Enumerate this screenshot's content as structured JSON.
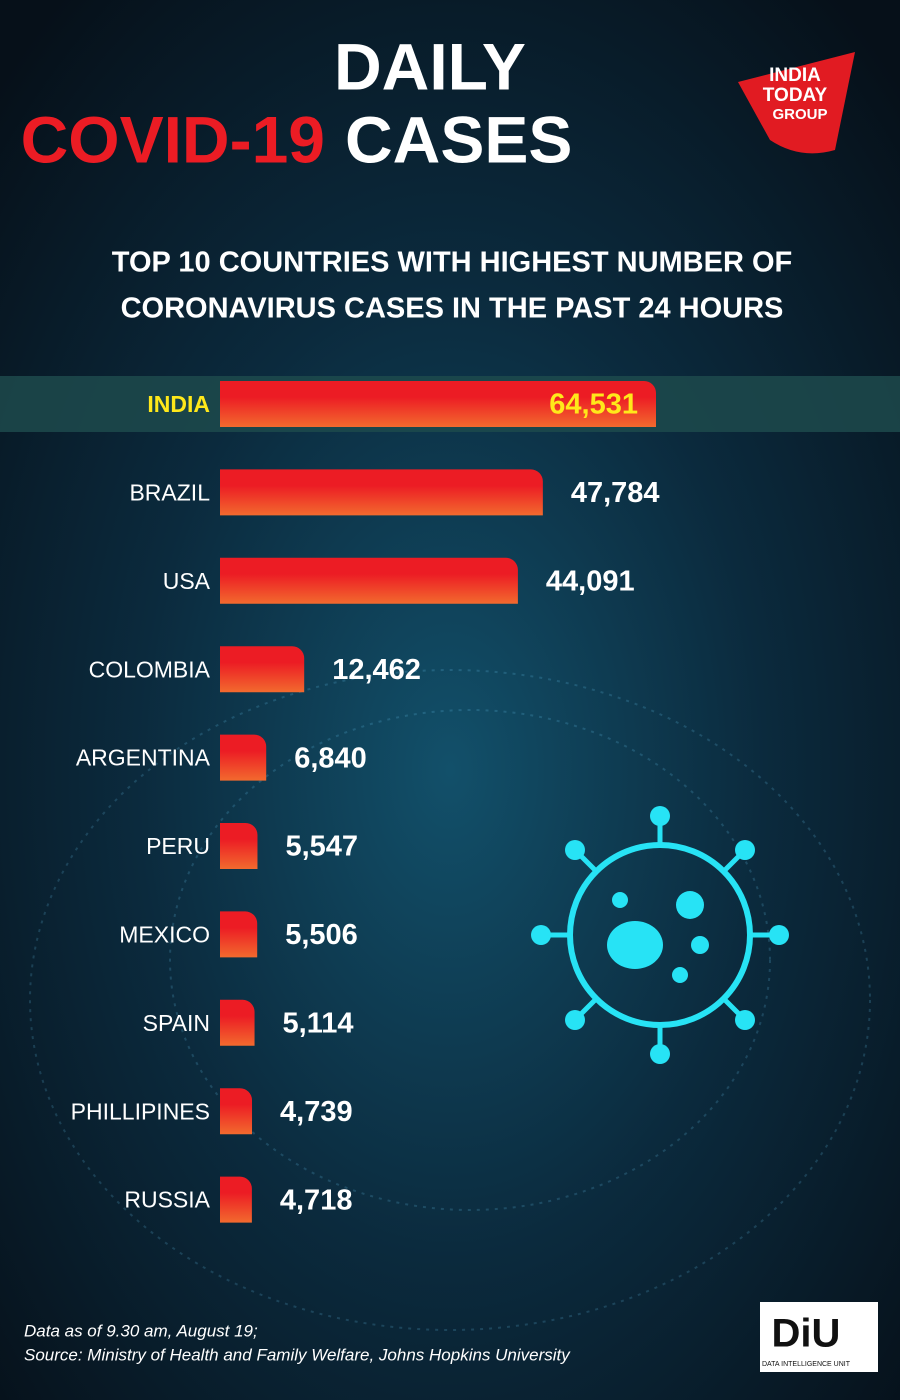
{
  "chart_data": {
    "type": "bar",
    "orientation": "horizontal",
    "title": [
      "DAILY",
      "COVID-19",
      "CASES"
    ],
    "subtitle": [
      "TOP 10 COUNTRIES WITH HIGHEST NUMBER OF",
      "CORONAVIRUS CASES IN THE PAST 24 HOURS"
    ],
    "categories": [
      "INDIA",
      "BRAZIL",
      "USA",
      "COLOMBIA",
      "ARGENTINA",
      "PERU",
      "MEXICO",
      "SPAIN",
      "PHILLIPINES",
      "RUSSIA"
    ],
    "values": [
      64531,
      47784,
      44091,
      12462,
      6840,
      5547,
      5506,
      5114,
      4739,
      4718
    ],
    "value_labels": [
      "64,531",
      "47,784",
      "44,091",
      "12,462",
      "6,840",
      "5,547",
      "5,506",
      "5,114",
      "4,739",
      "4,718"
    ],
    "label_colors": [
      "#ffe81a",
      "#ffffff",
      "#ffffff",
      "#ffffff",
      "#ffffff",
      "#ffffff",
      "#ffffff",
      "#ffffff",
      "#ffffff",
      "#ffffff"
    ],
    "bar_colors": [
      "#ec1c24",
      "#f26a2e"
    ],
    "footnote": [
      "Data as of 9.30 am, August 19;",
      "Source: Ministry of Health and Family Welfare, Johns Hopkins University"
    ]
  },
  "logos": {
    "india_today": [
      "INDIA",
      "TODAY",
      "GROUP"
    ],
    "diu": [
      "DiU",
      "DATA INTELLIGENCE UNIT"
    ]
  }
}
